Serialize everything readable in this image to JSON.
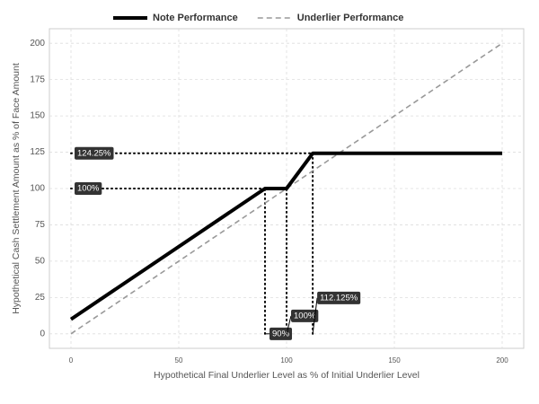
{
  "chart_data": {
    "type": "line",
    "x_label": "Hypothetical Final Underlier Level as % of Initial Underlier Level",
    "y_label": "Hypothetical Cash Settlement Amount as % of Face Amount",
    "xlim": [
      -10,
      210
    ],
    "ylim": [
      -10,
      210
    ],
    "xticks": [
      0,
      50,
      100,
      150,
      200
    ],
    "yticks": [
      0,
      25,
      50,
      75,
      100,
      125,
      150,
      175,
      200
    ],
    "grid": true,
    "legend": "top",
    "series": [
      {
        "name": "Note Performance",
        "color": "#000000",
        "x": [
          0,
          90,
          100,
          112.125,
          200
        ],
        "values": [
          10,
          100,
          100,
          124.25,
          124.25
        ]
      },
      {
        "name": "Underlier Performance",
        "color": "#999999",
        "dashed": true,
        "x": [
          0,
          200
        ],
        "values": [
          0,
          200
        ]
      }
    ],
    "h_guides": [
      {
        "y": 124.25,
        "x_end": 112.125,
        "label": "124.25%"
      },
      {
        "y": 100,
        "x_end": 90,
        "label": "100%"
      }
    ],
    "v_guides": [
      {
        "x": 90,
        "y_end": 100,
        "label": "90%"
      },
      {
        "x": 100,
        "y_end": 100,
        "label": "100%"
      },
      {
        "x": 112.125,
        "y_end": 124.25,
        "label": "112.125%"
      }
    ]
  }
}
